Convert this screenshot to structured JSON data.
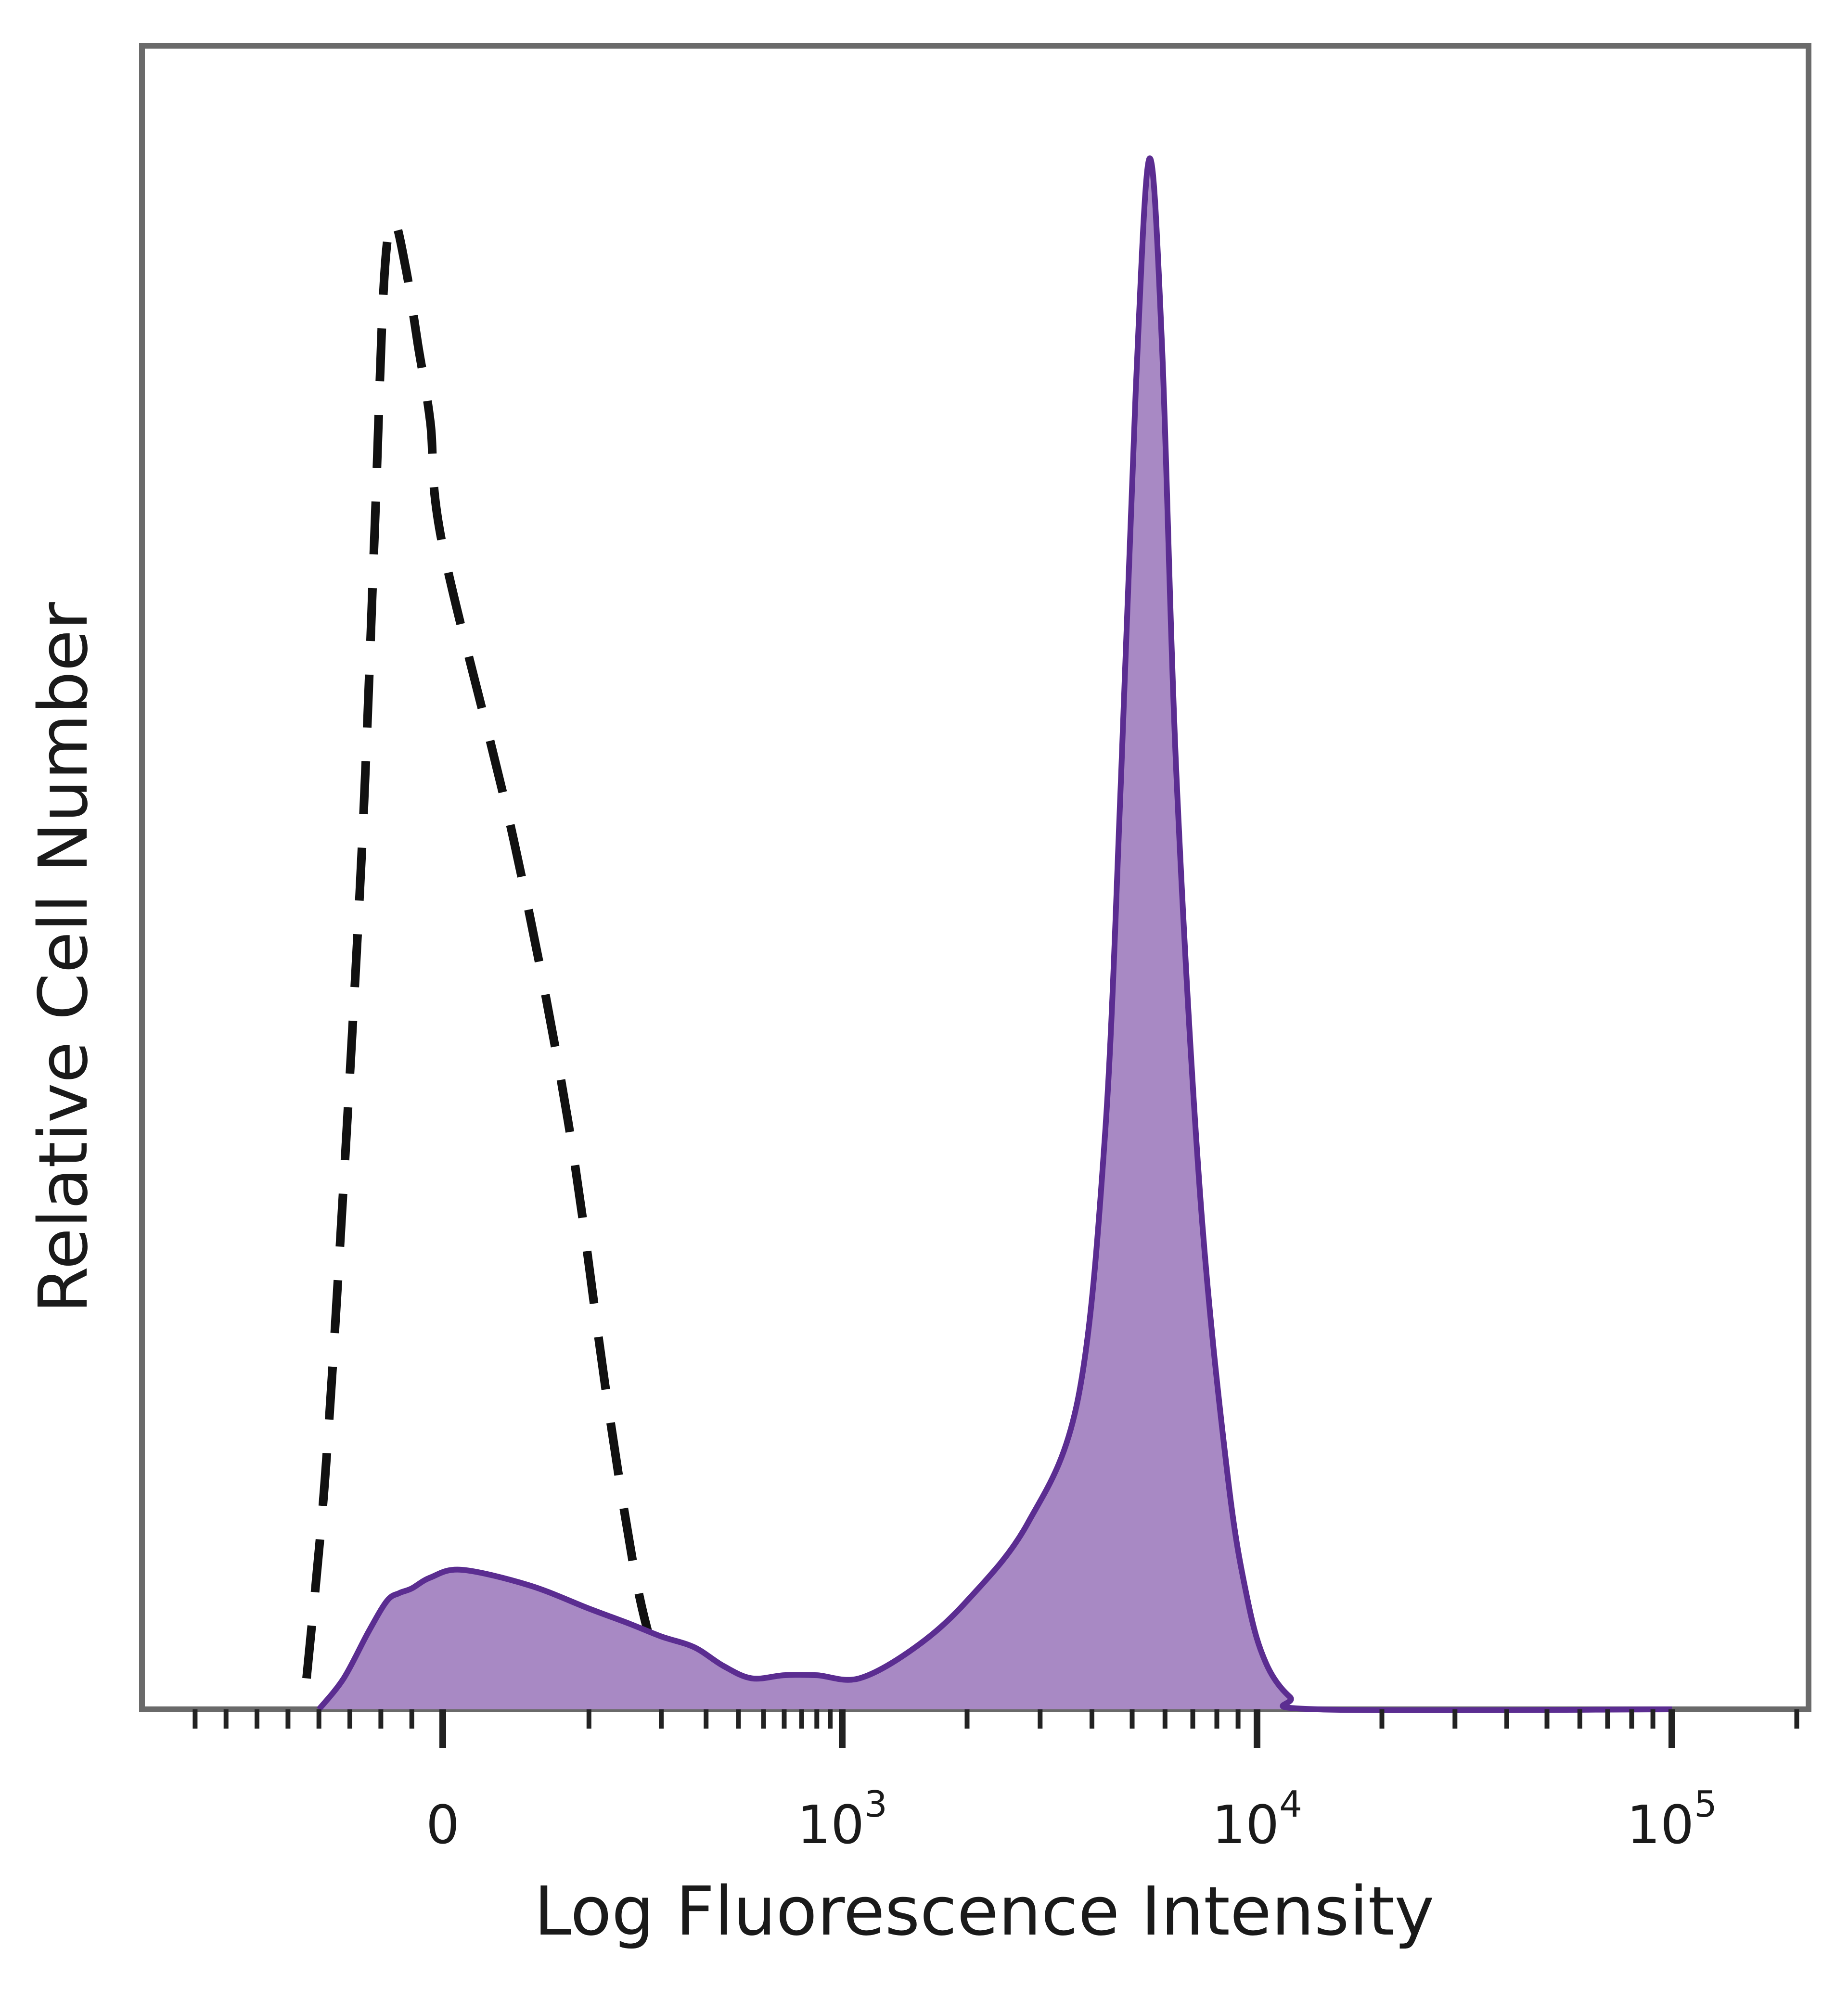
{
  "chart_data": {
    "type": "area",
    "title": "",
    "xlabel": "Log Fluorescence Intensity",
    "ylabel": "Relative Cell Number",
    "x_scale": "biexponential",
    "x_ticks": [
      {
        "value": 0,
        "label": "0",
        "sup": ""
      },
      {
        "value": 1000,
        "label": "10",
        "sup": "3"
      },
      {
        "value": 10000,
        "label": "10",
        "sup": "4"
      },
      {
        "value": 100000,
        "label": "10",
        "sup": "5"
      }
    ],
    "ylim": [
      0,
      1
    ],
    "grid": false,
    "legend": "none",
    "series": [
      {
        "style": "dashed",
        "color": "#111111",
        "points": [
          [
            -220,
            0.02
          ],
          [
            -190,
            0.15
          ],
          [
            -160,
            0.34
          ],
          [
            -130,
            0.56
          ],
          [
            -110,
            0.76
          ],
          [
            -95,
            0.92
          ],
          [
            -80,
            0.96
          ],
          [
            -60,
            0.93
          ],
          [
            -40,
            0.88
          ],
          [
            -20,
            0.83
          ],
          [
            0,
            0.75
          ],
          [
            40,
            0.56
          ],
          [
            80,
            0.38
          ],
          [
            120,
            0.2
          ],
          [
            160,
            0.08
          ],
          [
            200,
            0.02
          ]
        ]
      },
      {
        "style": "filled",
        "color": "#5b2d91",
        "fill": "#a889c4",
        "points": [
          [
            -200,
            0.0
          ],
          [
            -160,
            0.02
          ],
          [
            -120,
            0.05
          ],
          [
            -90,
            0.07
          ],
          [
            -70,
            0.075
          ],
          [
            -50,
            0.078
          ],
          [
            -20,
            0.085
          ],
          [
            10,
            0.09
          ],
          [
            50,
            0.08
          ],
          [
            100,
            0.065
          ],
          [
            150,
            0.055
          ],
          [
            200,
            0.047
          ],
          [
            270,
            0.04
          ],
          [
            350,
            0.028
          ],
          [
            450,
            0.02
          ],
          [
            600,
            0.022
          ],
          [
            800,
            0.022
          ],
          [
            1100,
            0.02
          ],
          [
            1500,
            0.04
          ],
          [
            2000,
            0.07
          ],
          [
            2800,
            0.12
          ],
          [
            3700,
            0.2
          ],
          [
            4300,
            0.37
          ],
          [
            4700,
            0.6
          ],
          [
            5100,
            0.85
          ],
          [
            5500,
            1.0
          ],
          [
            5900,
            0.88
          ],
          [
            6400,
            0.6
          ],
          [
            7300,
            0.33
          ],
          [
            8500,
            0.15
          ],
          [
            9500,
            0.07
          ],
          [
            10500,
            0.03
          ],
          [
            12000,
            0.008
          ],
          [
            14000,
            0.0
          ],
          [
            100000,
            0.0
          ]
        ]
      }
    ]
  }
}
